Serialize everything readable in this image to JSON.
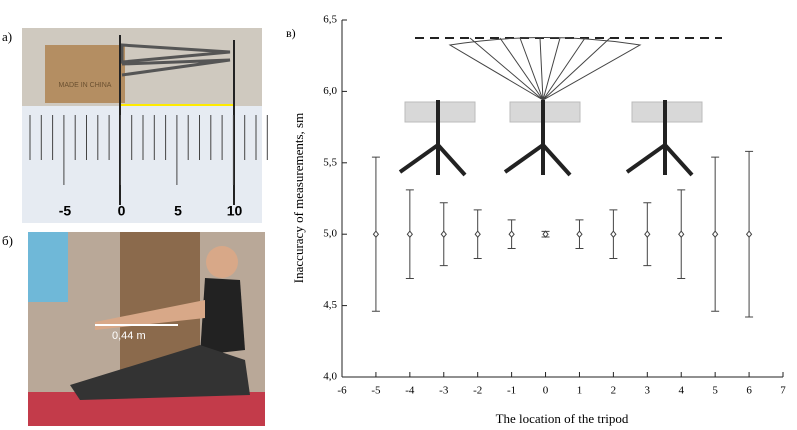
{
  "panels": {
    "a": {
      "label": "а)",
      "box_text": "MADE IN CHINA",
      "ruler_labels": [
        "-5",
        "0",
        "5",
        "10"
      ]
    },
    "b": {
      "label": "б)",
      "annotation": "0,44 m"
    }
  },
  "chart_data": {
    "type": "errorbar",
    "panel_label": "в)",
    "x_label": "The location of the tripod",
    "y_label": "Inaccuracy of measurements, sm",
    "x": [
      -5,
      -4,
      -3,
      -2,
      -1,
      0,
      1,
      2,
      3,
      4,
      5,
      6
    ],
    "values": [
      5,
      5,
      5,
      5,
      5,
      5,
      5,
      5,
      5,
      5,
      5,
      5
    ],
    "errors": [
      0.54,
      0.31,
      0.22,
      0.17,
      0.1,
      0.02,
      0.1,
      0.17,
      0.22,
      0.31,
      0.54,
      0.58
    ],
    "color": "#444444",
    "xlim": [
      -6,
      7
    ],
    "xticks": [
      -6,
      -5,
      -4,
      -3,
      -2,
      -1,
      0,
      1,
      2,
      3,
      4,
      5,
      6,
      7
    ],
    "ylim": [
      4,
      6.5
    ],
    "yticks": [
      {
        "value": 4,
        "label": "4,0"
      },
      {
        "value": 4.5,
        "label": "4,5"
      },
      {
        "value": 5,
        "label": "5,0"
      },
      {
        "value": 5.5,
        "label": "5,5"
      },
      {
        "value": 6,
        "label": "6,0"
      },
      {
        "value": 6.5,
        "label": "6,5"
      }
    ]
  }
}
